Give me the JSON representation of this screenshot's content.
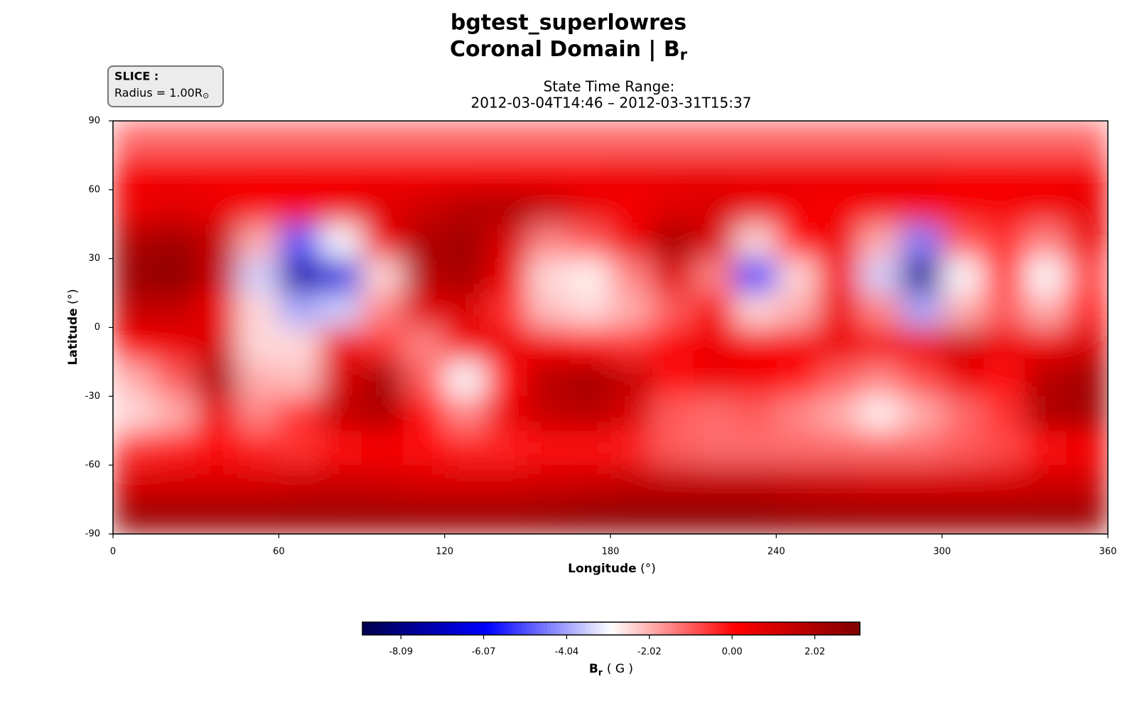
{
  "chart_data": {
    "type": "heatmap",
    "title": [
      "bgtest_superlowres",
      {
        "text": "Coronal Domain | B",
        "sub": "r"
      }
    ],
    "subtitle": [
      "State Time Range:",
      "2012-03-04T14:46 – 2012-03-31T15:37"
    ],
    "slice_box": {
      "heading": "SLICE :",
      "text": "Radius = 1.00R",
      "sub": "⊙"
    },
    "xlabel": {
      "bold": "Longitude",
      "unit": "(°)"
    },
    "ylabel": {
      "bold": "Latitude",
      "unit": "(°)"
    },
    "x": [
      7.5,
      22.5,
      37.5,
      52.5,
      67.5,
      82.5,
      97.5,
      112.5,
      127.5,
      142.5,
      157.5,
      172.5,
      187.5,
      202.5,
      217.5,
      232.5,
      247.5,
      262.5,
      277.5,
      292.5,
      307.5,
      322.5,
      337.5,
      352.5
    ],
    "y": [
      82.5,
      67.5,
      52.5,
      37.5,
      22.5,
      7.5,
      -7.5,
      -22.5,
      -37.5,
      -52.5,
      -67.5,
      -82.5
    ],
    "values": [
      [
        -1.2,
        -1.2,
        -1.2,
        -1.2,
        -1.2,
        -1.2,
        -1.2,
        -1.2,
        -1.2,
        -1.2,
        -1.2,
        -1.2,
        -1.2,
        -1.2,
        -1.2,
        -1.2,
        -1.2,
        -1.2,
        -1.2,
        -1.2,
        -1.2,
        -1.2,
        -1.2,
        -1.2
      ],
      [
        0.3,
        0.3,
        0.3,
        0.3,
        0.3,
        0.3,
        0.3,
        0.3,
        0.3,
        0.3,
        0.3,
        0.3,
        0.5,
        0.5,
        0.5,
        0.5,
        0.5,
        0.5,
        0.5,
        0.5,
        0.3,
        0.3,
        0.3,
        0.3
      ],
      [
        0.5,
        0.8,
        0.5,
        0.3,
        0.3,
        0.5,
        0.8,
        1.2,
        1.8,
        2.0,
        1.5,
        0.6,
        0.3,
        0.8,
        1.0,
        0.6,
        0.4,
        0.3,
        0.4,
        0.3,
        0.3,
        0.3,
        0.4,
        0.6
      ],
      [
        2.0,
        2.3,
        1.5,
        -2.0,
        -5.0,
        -3.0,
        0.5,
        2.0,
        2.3,
        1.0,
        -1.5,
        -1.0,
        0.5,
        2.2,
        1.0,
        -2.5,
        0.0,
        0.5,
        -2.0,
        -4.5,
        -1.0,
        -0.5,
        -1.5,
        0.5
      ],
      [
        2.5,
        2.8,
        1.5,
        -3.5,
        -7.5,
        -6.5,
        -2.5,
        1.8,
        2.2,
        0.5,
        -2.5,
        -2.8,
        -1.5,
        0.8,
        -1.5,
        -5.5,
        -2.5,
        0.3,
        -3.5,
        -7.8,
        -3.0,
        -0.5,
        -3.0,
        -0.8
      ],
      [
        1.5,
        1.5,
        0.5,
        -2.5,
        -4.0,
        -3.5,
        -1.5,
        0.8,
        1.0,
        -0.5,
        -2.2,
        -2.5,
        -2.0,
        -1.0,
        0.3,
        -2.5,
        -2.0,
        0.5,
        -1.5,
        -4.0,
        -2.0,
        -1.0,
        -2.0,
        -0.3
      ],
      [
        0.2,
        0.5,
        1.0,
        -2.5,
        -2.5,
        0.5,
        -0.5,
        -1.5,
        0.3,
        0.5,
        0.3,
        0.0,
        -0.5,
        0.2,
        0.5,
        0.3,
        0.3,
        0.5,
        0.3,
        0.5,
        1.2,
        0.5,
        0.5,
        1.0
      ],
      [
        -2.0,
        -1.0,
        2.0,
        -2.0,
        -2.2,
        1.0,
        2.2,
        -1.0,
        -3.0,
        0.0,
        1.8,
        2.2,
        1.5,
        0.0,
        0.5,
        0.3,
        0.0,
        -1.0,
        -1.5,
        -0.8,
        0.5,
        0.0,
        1.8,
        2.3
      ],
      [
        -2.5,
        -2.0,
        0.5,
        -1.5,
        -0.5,
        1.5,
        2.0,
        0.0,
        -1.5,
        0.5,
        1.5,
        1.8,
        1.0,
        -1.0,
        -1.2,
        -1.0,
        -1.5,
        -2.0,
        -2.8,
        -2.0,
        -1.2,
        -0.5,
        2.0,
        2.2
      ],
      [
        -0.5,
        -0.3,
        0.0,
        -0.3,
        -0.5,
        0.0,
        0.2,
        0.0,
        -0.3,
        -0.3,
        0.0,
        0.0,
        -0.3,
        -1.0,
        -1.2,
        -1.2,
        -1.2,
        -1.2,
        -1.2,
        -1.2,
        -1.0,
        -0.8,
        0.0,
        0.2
      ],
      [
        1.0,
        1.0,
        1.0,
        1.0,
        1.2,
        1.3,
        1.2,
        1.0,
        1.0,
        1.0,
        1.2,
        1.3,
        1.5,
        1.5,
        1.5,
        1.5,
        1.3,
        1.2,
        1.0,
        1.0,
        1.0,
        1.0,
        1.2,
        1.2
      ],
      [
        2.5,
        2.5,
        2.5,
        2.5,
        2.5,
        2.5,
        2.5,
        2.5,
        2.5,
        2.5,
        2.6,
        2.8,
        2.8,
        2.8,
        2.8,
        2.8,
        2.6,
        2.5,
        2.5,
        2.5,
        2.5,
        2.5,
        2.5,
        2.5
      ]
    ],
    "xlim": [
      0,
      360
    ],
    "ylim": [
      -90,
      90
    ],
    "xticks": [
      0,
      60,
      120,
      180,
      240,
      300,
      360
    ],
    "yticks": [
      -90,
      -60,
      -30,
      0,
      30,
      60,
      90
    ],
    "colormap": "seismic",
    "colorbar": {
      "clim": [
        -9.03,
        3.12
      ],
      "ticks": [
        -8.09,
        -6.07,
        -4.04,
        -2.02,
        {
          "value": 0,
          "label": "0.00"
        },
        2.02
      ],
      "label": {
        "bold": "B",
        "sub": "r",
        "unit": "( G )"
      }
    }
  }
}
